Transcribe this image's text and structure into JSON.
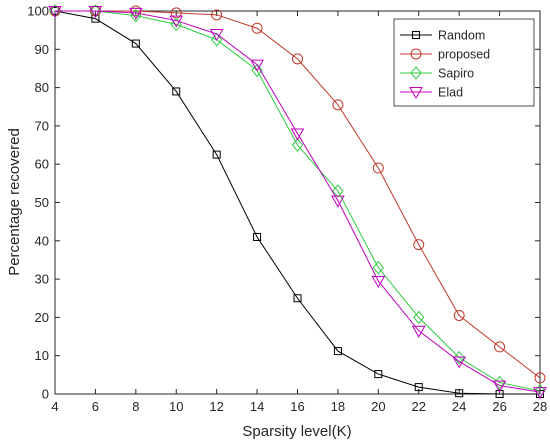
{
  "chart_data": {
    "type": "line",
    "title": "",
    "xlabel": "Sparsity level(K)",
    "ylabel": "Percentage recovered",
    "xlim": [
      4,
      28
    ],
    "ylim": [
      0,
      100
    ],
    "xticks": [
      4,
      6,
      8,
      10,
      12,
      14,
      16,
      18,
      20,
      22,
      24,
      26,
      28
    ],
    "yticks": [
      0,
      10,
      20,
      30,
      40,
      50,
      60,
      70,
      80,
      90,
      100
    ],
    "grid": false,
    "legend_position": "top-right",
    "x": [
      4,
      6,
      8,
      10,
      12,
      14,
      16,
      18,
      20,
      22,
      24,
      26,
      28
    ],
    "series": [
      {
        "name": "Random",
        "color": "#000000",
        "marker": "square",
        "values": [
          100,
          98,
          91.5,
          79,
          62.5,
          41,
          25,
          11.2,
          5.2,
          1.8,
          0.2,
          0,
          0
        ]
      },
      {
        "name": "proposed",
        "color": "#c0392b",
        "marker": "circle",
        "values": [
          100,
          100,
          100,
          99.5,
          99,
          95.5,
          87.5,
          75.5,
          59,
          39,
          20.5,
          12.3,
          4.2
        ]
      },
      {
        "name": "Sapiro",
        "color": "#2ecc40",
        "marker": "diamond",
        "values": [
          100,
          100,
          98.8,
          96.5,
          92.5,
          84.5,
          65,
          53,
          33,
          20,
          9.5,
          3,
          0.8
        ]
      },
      {
        "name": "Elad",
        "color": "#c000c0",
        "marker": "triangle-down",
        "values": [
          100,
          100,
          99.5,
          97.5,
          94,
          86,
          68,
          50.5,
          29.5,
          16.5,
          8.5,
          2.2,
          0.5
        ]
      }
    ]
  }
}
